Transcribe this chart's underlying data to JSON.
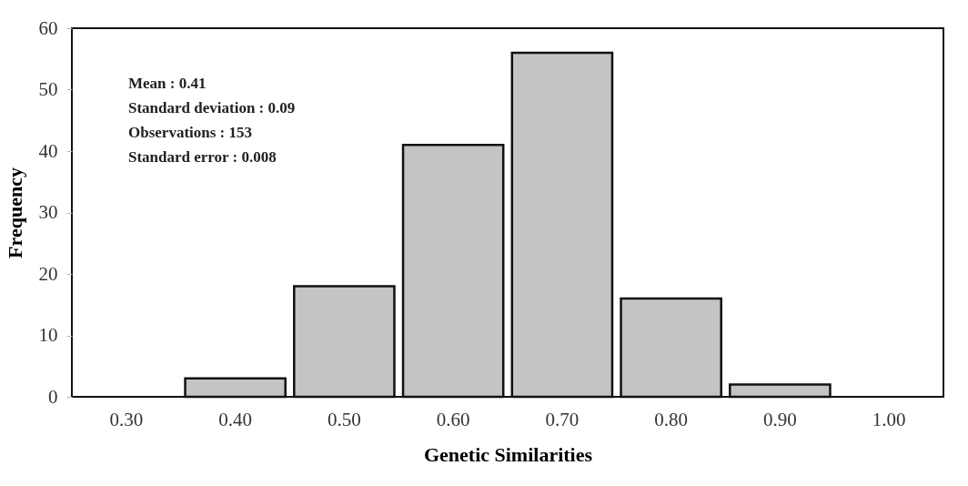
{
  "chart_data": {
    "type": "bar",
    "xlabel": "Genetic Similarities",
    "ylabel": "Frequency",
    "categories": [
      "0.30",
      "0.40",
      "0.50",
      "0.60",
      "0.70",
      "0.80",
      "0.90",
      "1.00"
    ],
    "values": [
      0,
      3,
      18,
      41,
      56,
      16,
      2,
      0
    ],
    "color": "#c4c4c4",
    "ylim": [
      0,
      60
    ],
    "yticks": [
      0,
      10,
      20,
      30,
      40,
      50,
      60
    ],
    "annotations": [
      "Mean : 0.41",
      "Standard deviation : 0.09",
      "Observations : 153",
      "Standard error : 0.008"
    ]
  }
}
